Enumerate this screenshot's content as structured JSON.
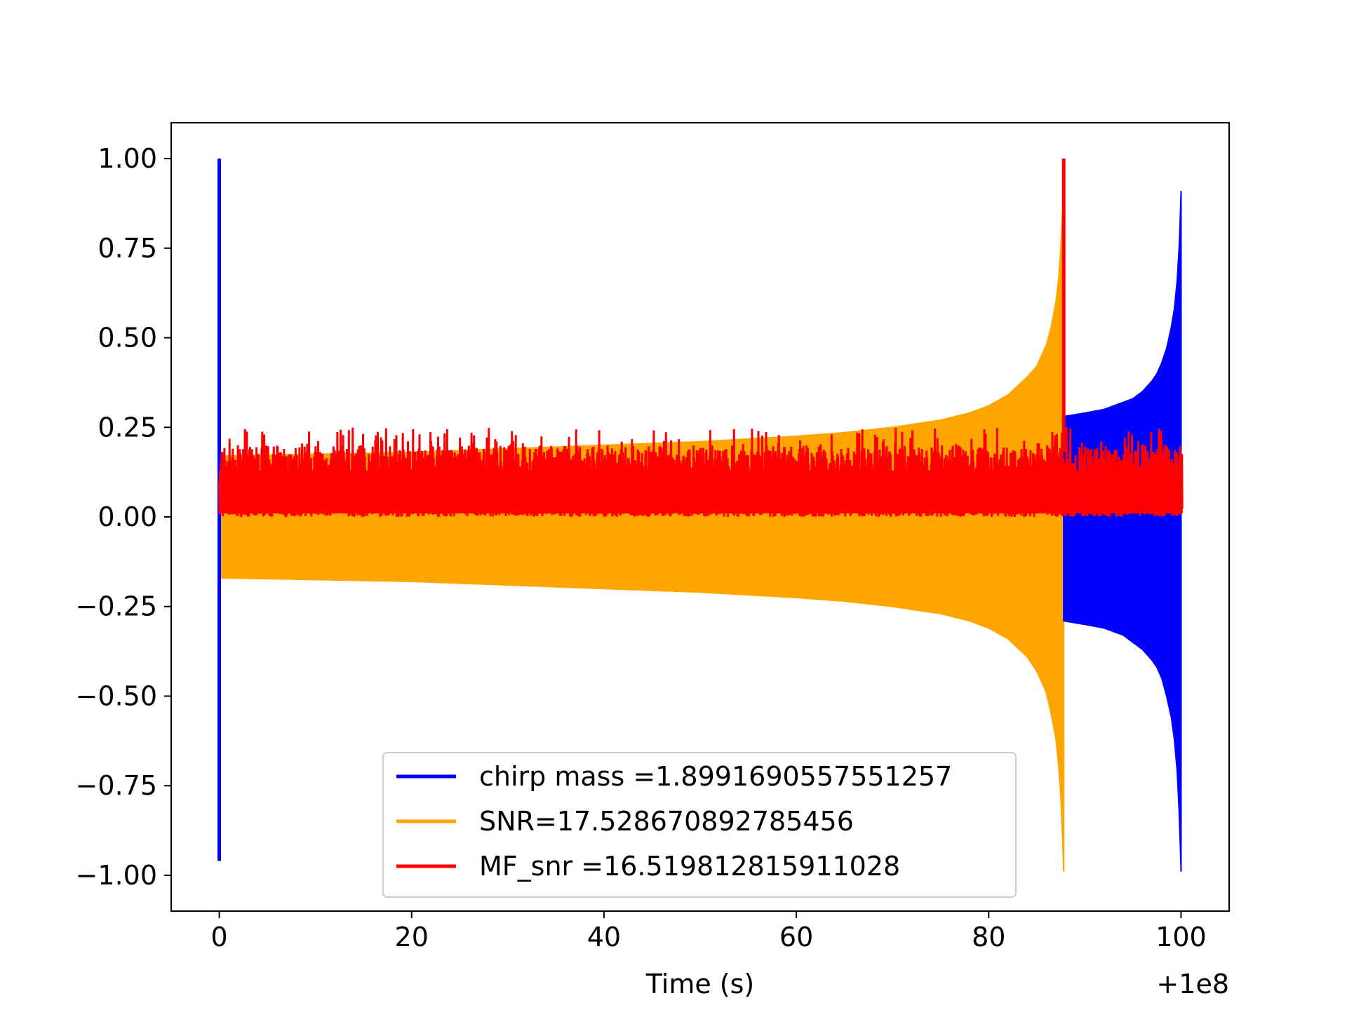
{
  "chart_data": {
    "type": "line",
    "title": "",
    "xlabel": "Time (s)",
    "ylabel": "",
    "x_offset_label": "+1e8",
    "xlim": [
      -5,
      105
    ],
    "ylim": [
      -1.1,
      1.1
    ],
    "xticks": [
      0,
      20,
      40,
      60,
      80,
      100
    ],
    "xtick_labels": [
      "0",
      "20",
      "40",
      "60",
      "80",
      "100"
    ],
    "yticks": [
      1.0,
      0.75,
      0.5,
      0.25,
      0.0,
      -0.25,
      -0.5,
      -0.75,
      -1.0
    ],
    "ytick_labels": [
      "1.00",
      "0.75",
      "0.50",
      "0.25",
      "0.00",
      "−0.25",
      "−0.50",
      "−0.75",
      "−1.00"
    ],
    "grid": false,
    "legend_position": "lower-center",
    "series": [
      {
        "name": "chirp mass =1.8991690557551257",
        "color": "#0000ff",
        "spike_x": 0,
        "spike_range": [
          -0.96,
          1.0
        ],
        "x": [
          87.8,
          90,
          92,
          94,
          95,
          96,
          97,
          97.5,
          98,
          98.5,
          99,
          99.3,
          99.6,
          99.8,
          99.9,
          100.0
        ],
        "upper": [
          0.28,
          0.29,
          0.3,
          0.32,
          0.33,
          0.35,
          0.38,
          0.4,
          0.43,
          0.47,
          0.53,
          0.58,
          0.66,
          0.75,
          0.82,
          0.91
        ],
        "lower": [
          -0.29,
          -0.3,
          -0.31,
          -0.33,
          -0.35,
          -0.37,
          -0.4,
          -0.42,
          -0.45,
          -0.5,
          -0.56,
          -0.62,
          -0.71,
          -0.82,
          -0.9,
          -0.99
        ]
      },
      {
        "name": "SNR=17.528670892785456",
        "color": "#ffa500",
        "x": [
          0,
          10,
          20,
          30,
          40,
          50,
          60,
          65,
          70,
          75,
          78,
          80,
          82,
          84,
          85,
          86,
          86.5,
          87,
          87.3,
          87.5,
          87.7,
          87.8
        ],
        "upper": [
          0.17,
          0.175,
          0.18,
          0.19,
          0.2,
          0.21,
          0.225,
          0.235,
          0.25,
          0.27,
          0.29,
          0.31,
          0.34,
          0.39,
          0.42,
          0.48,
          0.53,
          0.6,
          0.67,
          0.75,
          0.86,
          0.98
        ],
        "lower": [
          -0.17,
          -0.175,
          -0.18,
          -0.19,
          -0.2,
          -0.21,
          -0.225,
          -0.235,
          -0.25,
          -0.27,
          -0.29,
          -0.31,
          -0.34,
          -0.39,
          -0.43,
          -0.49,
          -0.55,
          -0.62,
          -0.7,
          -0.78,
          -0.9,
          -0.99
        ]
      },
      {
        "name": "MF_snr =16.519812815911028",
        "color": "#ff0000",
        "band": [
          0.0,
          0.25
        ],
        "spike_x": 87.8,
        "spike_range": [
          0.18,
          1.0
        ]
      }
    ]
  }
}
